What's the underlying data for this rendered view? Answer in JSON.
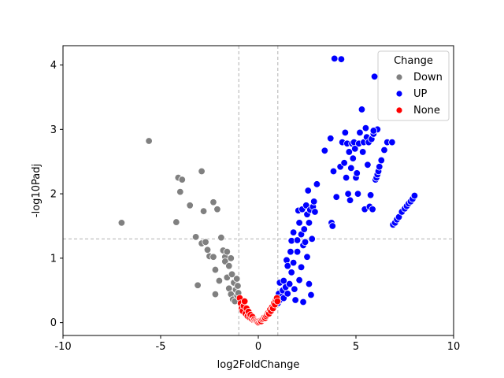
{
  "chart_data": {
    "type": "scatter",
    "title": "",
    "xlabel": "log2FoldChange",
    "ylabel": "-log10Padj",
    "xlim": [
      -10,
      10
    ],
    "ylim": [
      -0.2,
      4.3
    ],
    "xticks": [
      -10,
      -5,
      0,
      5,
      10
    ],
    "yticks": [
      0,
      1,
      2,
      3,
      4
    ],
    "grid": false,
    "thresholds": {
      "x": [
        -1,
        1
      ],
      "y": 1.3
    },
    "legend": {
      "title": "Change",
      "placement": "top-right",
      "entries": [
        {
          "name": "Down",
          "color": "#808080"
        },
        {
          "name": "UP",
          "color": "#0000ff"
        },
        {
          "name": "None",
          "color": "#ff0000"
        }
      ]
    },
    "series": [
      {
        "name": "Down",
        "color": "#808080",
        "points": [
          [
            -7.0,
            1.55
          ],
          [
            -5.6,
            2.82
          ],
          [
            -4.2,
            1.56
          ],
          [
            -4.1,
            2.25
          ],
          [
            -4.0,
            2.03
          ],
          [
            -3.9,
            2.22
          ],
          [
            -3.5,
            1.82
          ],
          [
            -3.2,
            1.33
          ],
          [
            -3.1,
            0.58
          ],
          [
            -2.9,
            2.35
          ],
          [
            -2.9,
            1.23
          ],
          [
            -2.8,
            1.73
          ],
          [
            -2.7,
            1.25
          ],
          [
            -2.6,
            1.13
          ],
          [
            -2.5,
            1.03
          ],
          [
            -2.3,
            1.87
          ],
          [
            -2.3,
            1.02
          ],
          [
            -2.2,
            0.82
          ],
          [
            -2.2,
            0.44
          ],
          [
            -2.1,
            1.76
          ],
          [
            -2.0,
            0.65
          ],
          [
            -1.9,
            1.32
          ],
          [
            -1.8,
            1.12
          ],
          [
            -1.7,
            1.02
          ],
          [
            -1.7,
            0.95
          ],
          [
            -1.6,
            1.1
          ],
          [
            -1.6,
            0.7
          ],
          [
            -1.5,
            0.88
          ],
          [
            -1.5,
            0.53
          ],
          [
            -1.4,
            1.0
          ],
          [
            -1.4,
            0.44
          ],
          [
            -1.35,
            0.75
          ],
          [
            -1.3,
            0.36
          ],
          [
            -1.25,
            0.62
          ],
          [
            -1.2,
            0.33
          ],
          [
            -1.15,
            0.51
          ],
          [
            -1.1,
            0.68
          ],
          [
            -1.08,
            0.42
          ],
          [
            -1.05,
            0.57
          ],
          [
            -1.02,
            0.46
          ]
        ]
      },
      {
        "name": "UP",
        "color": "#0000ff",
        "points": [
          [
            1.0,
            0.3
          ],
          [
            1.05,
            0.45
          ],
          [
            1.1,
            0.35
          ],
          [
            1.1,
            0.62
          ],
          [
            1.2,
            0.4
          ],
          [
            1.25,
            0.5
          ],
          [
            1.3,
            0.65
          ],
          [
            1.3,
            0.38
          ],
          [
            1.4,
            0.55
          ],
          [
            1.45,
            0.97
          ],
          [
            1.5,
            0.88
          ],
          [
            1.5,
            0.45
          ],
          [
            1.6,
            0.6
          ],
          [
            1.65,
            1.1
          ],
          [
            1.7,
            0.78
          ],
          [
            1.7,
            1.27
          ],
          [
            1.8,
            1.4
          ],
          [
            1.8,
            0.93
          ],
          [
            1.85,
            0.52
          ],
          [
            1.9,
            0.35
          ],
          [
            2.0,
            1.1
          ],
          [
            2.0,
            1.28
          ],
          [
            2.05,
            1.74
          ],
          [
            2.1,
            1.55
          ],
          [
            2.1,
            0.66
          ],
          [
            2.2,
            1.37
          ],
          [
            2.2,
            0.86
          ],
          [
            2.25,
            1.76
          ],
          [
            2.3,
            1.2
          ],
          [
            2.3,
            0.32
          ],
          [
            2.35,
            1.45
          ],
          [
            2.4,
            1.25
          ],
          [
            2.45,
            1.82
          ],
          [
            2.5,
            1.68
          ],
          [
            2.5,
            1.02
          ],
          [
            2.55,
            2.05
          ],
          [
            2.6,
            1.55
          ],
          [
            2.6,
            0.6
          ],
          [
            2.65,
            1.75
          ],
          [
            2.7,
            0.43
          ],
          [
            2.75,
            1.3
          ],
          [
            2.8,
            1.8
          ],
          [
            2.85,
            1.88
          ],
          [
            2.9,
            1.72
          ],
          [
            3.0,
            2.15
          ],
          [
            3.4,
            2.67
          ],
          [
            3.7,
            2.86
          ],
          [
            3.75,
            1.55
          ],
          [
            3.8,
            1.5
          ],
          [
            3.85,
            2.35
          ],
          [
            3.9,
            4.1
          ],
          [
            4.0,
            1.95
          ],
          [
            4.2,
            2.42
          ],
          [
            4.25,
            4.09
          ],
          [
            4.3,
            2.8
          ],
          [
            4.4,
            2.48
          ],
          [
            4.45,
            2.95
          ],
          [
            4.5,
            2.25
          ],
          [
            4.55,
            2.78
          ],
          [
            4.6,
            2.0
          ],
          [
            4.65,
            2.65
          ],
          [
            4.7,
            1.9
          ],
          [
            4.75,
            2.4
          ],
          [
            4.8,
            2.78
          ],
          [
            4.85,
            2.55
          ],
          [
            4.9,
            2.8
          ],
          [
            4.95,
            2.7
          ],
          [
            5.0,
            2.25
          ],
          [
            5.05,
            2.32
          ],
          [
            5.1,
            2.0
          ],
          [
            5.15,
            2.78
          ],
          [
            5.2,
            2.95
          ],
          [
            5.3,
            3.31
          ],
          [
            5.35,
            2.65
          ],
          [
            5.4,
            2.8
          ],
          [
            5.45,
            1.76
          ],
          [
            5.5,
            3.02
          ],
          [
            5.55,
            2.88
          ],
          [
            5.6,
            2.45
          ],
          [
            5.65,
            2.8
          ],
          [
            5.7,
            1.8
          ],
          [
            5.75,
            1.98
          ],
          [
            5.8,
            2.85
          ],
          [
            5.85,
            1.76
          ],
          [
            5.9,
            2.93
          ],
          [
            5.95,
            3.82
          ],
          [
            6.0,
            2.22
          ],
          [
            6.05,
            2.25
          ],
          [
            6.1,
            2.3
          ],
          [
            6.15,
            2.35
          ],
          [
            6.2,
            2.42
          ],
          [
            6.3,
            2.52
          ],
          [
            6.45,
            2.68
          ],
          [
            6.6,
            2.8
          ],
          [
            6.85,
            2.8
          ],
          [
            6.9,
            1.52
          ],
          [
            7.0,
            1.55
          ],
          [
            7.1,
            1.6
          ],
          [
            7.2,
            1.64
          ],
          [
            7.35,
            1.72
          ],
          [
            7.5,
            1.77
          ],
          [
            7.6,
            1.81
          ],
          [
            7.7,
            1.85
          ],
          [
            7.8,
            1.88
          ],
          [
            7.9,
            1.92
          ],
          [
            8.0,
            1.97
          ],
          [
            6.1,
            3.0
          ],
          [
            5.9,
            2.98
          ]
        ]
      },
      {
        "name": "None",
        "color": "#ff0000",
        "points": [
          [
            -0.95,
            0.38
          ],
          [
            -0.9,
            0.3
          ],
          [
            -0.85,
            0.22
          ],
          [
            -0.8,
            0.18
          ],
          [
            -0.75,
            0.26
          ],
          [
            -0.7,
            0.33
          ],
          [
            -0.65,
            0.14
          ],
          [
            -0.6,
            0.22
          ],
          [
            -0.55,
            0.1
          ],
          [
            -0.5,
            0.17
          ],
          [
            -0.45,
            0.08
          ],
          [
            -0.4,
            0.12
          ],
          [
            -0.35,
            0.06
          ],
          [
            -0.3,
            0.09
          ],
          [
            -0.25,
            0.04
          ],
          [
            -0.2,
            0.05
          ],
          [
            -0.15,
            0.03
          ],
          [
            -0.1,
            0.02
          ],
          [
            -0.05,
            0.01
          ],
          [
            0.0,
            0.0
          ],
          [
            0.05,
            0.01
          ],
          [
            0.1,
            0.03
          ],
          [
            0.15,
            0.02
          ],
          [
            0.2,
            0.05
          ],
          [
            0.25,
            0.06
          ],
          [
            0.3,
            0.08
          ],
          [
            0.35,
            0.07
          ],
          [
            0.4,
            0.1
          ],
          [
            0.45,
            0.12
          ],
          [
            0.5,
            0.15
          ],
          [
            0.55,
            0.14
          ],
          [
            0.6,
            0.2
          ],
          [
            0.65,
            0.18
          ],
          [
            0.7,
            0.24
          ],
          [
            0.75,
            0.22
          ],
          [
            0.8,
            0.3
          ],
          [
            0.85,
            0.28
          ],
          [
            0.9,
            0.35
          ],
          [
            0.95,
            0.38
          ],
          [
            0.98,
            0.33
          ]
        ]
      }
    ]
  }
}
